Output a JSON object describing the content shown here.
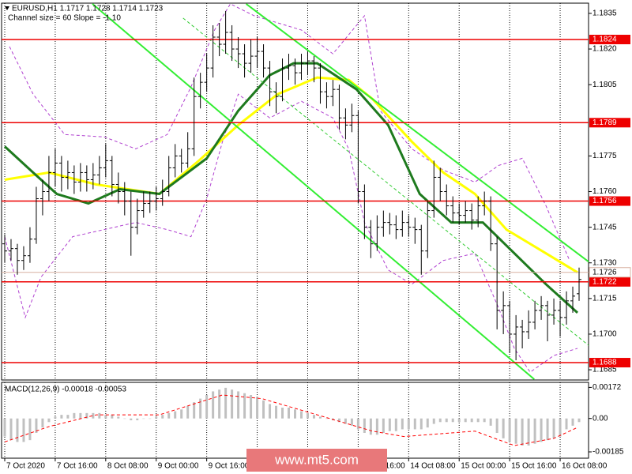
{
  "header": {
    "symbol_line": "EURUSD,H1  1.1717 1.1728 1.1714 1.1723",
    "channel_info": "Channel size = 60 Slope = -1.10"
  },
  "watermark": "www.mt5.com",
  "chart_data": [
    {
      "type": "ohlc",
      "bar_color": "#000000",
      "grid": true,
      "xlim": [
        -0.5,
        92.5
      ],
      "ylim": [
        1.16807,
        1.18393
      ],
      "xticks": [
        {
          "value": 0,
          "label": "7 Oct 2020"
        },
        {
          "value": 8,
          "label": "7 Oct 16:00"
        },
        {
          "value": 16,
          "label": "8 Oct 08:00"
        },
        {
          "value": 24,
          "label": "9 Oct 00:00"
        },
        {
          "value": 32,
          "label": "9 Oct 16:00"
        },
        {
          "value": 40,
          "label": "12 Oct 08:00"
        },
        {
          "value": 48,
          "label": "13 Oct 00:00"
        },
        {
          "value": 56,
          "label": "13 Oct 16:00"
        },
        {
          "value": 64,
          "label": "14 Oct 08:00"
        },
        {
          "value": 72,
          "label": "15 Oct 00:00"
        },
        {
          "value": 80,
          "label": "15 Oct 16:00"
        },
        {
          "value": 88,
          "label": "16 Oct 08:00"
        }
      ],
      "yticks": [
        1.1835,
        {
          "value": 1.182,
          "label": "1.1820"
        },
        1.1805,
        1.1775,
        {
          "value": 1.176,
          "label": "1.1760"
        },
        1.1745,
        {
          "value": 1.173,
          "label": "1.1730"
        },
        1.1715,
        {
          "value": 1.17,
          "label": "1.1700"
        },
        1.1685
      ],
      "levels": [
        1.1824,
        1.1789,
        1.1756,
        1.1722,
        1.1688
      ],
      "level_color": "#ee0000",
      "current_price": 1.1726,
      "current_price_color": "#d8b0a0",
      "ohlc": [
        [
          1.1738,
          1.1742,
          1.173,
          1.1735
        ],
        [
          1.1735,
          1.174,
          1.1731,
          1.1736
        ],
        [
          1.1736,
          1.1738,
          1.1725,
          1.1731
        ],
        [
          1.1731,
          1.1737,
          1.1727,
          1.1733
        ],
        [
          1.1733,
          1.1745,
          1.173,
          1.174
        ],
        [
          1.174,
          1.1762,
          1.1738,
          1.1757
        ],
        [
          1.1757,
          1.1765,
          1.175,
          1.176
        ],
        [
          1.176,
          1.1775,
          1.1756,
          1.1768
        ],
        [
          1.1768,
          1.1778,
          1.1762,
          1.1772
        ],
        [
          1.1772,
          1.1775,
          1.176,
          1.1766
        ],
        [
          1.1766,
          1.1773,
          1.1761,
          1.1768
        ],
        [
          1.1768,
          1.1771,
          1.1759,
          1.1764
        ],
        [
          1.1764,
          1.1772,
          1.176,
          1.1768
        ],
        [
          1.1768,
          1.1771,
          1.176,
          1.1765
        ],
        [
          1.1765,
          1.1772,
          1.1761,
          1.1767
        ],
        [
          1.1767,
          1.1775,
          1.1763,
          1.177
        ],
        [
          1.177,
          1.178,
          1.1766,
          1.1773
        ],
        [
          1.1773,
          1.1775,
          1.1758,
          1.1763
        ],
        [
          1.1763,
          1.1768,
          1.1755,
          1.176
        ],
        [
          1.176,
          1.1764,
          1.175,
          1.1756
        ],
        [
          1.1756,
          1.176,
          1.1733,
          1.1745
        ],
        [
          1.1745,
          1.1757,
          1.1742,
          1.1752
        ],
        [
          1.1752,
          1.176,
          1.1749,
          1.1755
        ],
        [
          1.1755,
          1.176,
          1.1751,
          1.1756
        ],
        [
          1.1756,
          1.1762,
          1.1752,
          1.1757
        ],
        [
          1.1757,
          1.1765,
          1.1754,
          1.176
        ],
        [
          1.176,
          1.1775,
          1.1758,
          1.177
        ],
        [
          1.177,
          1.178,
          1.1766,
          1.1775
        ],
        [
          1.1775,
          1.1778,
          1.1768,
          1.1772
        ],
        [
          1.1772,
          1.1785,
          1.177,
          1.1778
        ],
        [
          1.1778,
          1.1808,
          1.1775,
          1.18
        ],
        [
          1.18,
          1.181,
          1.1795,
          1.1806
        ],
        [
          1.1806,
          1.1818,
          1.1802,
          1.1812
        ],
        [
          1.1812,
          1.183,
          1.1808,
          1.1825
        ],
        [
          1.1825,
          1.1831,
          1.1817,
          1.1822
        ],
        [
          1.1822,
          1.1836,
          1.1818,
          1.1827
        ],
        [
          1.1827,
          1.183,
          1.1815,
          1.182
        ],
        [
          1.182,
          1.1825,
          1.1812,
          1.1818
        ],
        [
          1.1818,
          1.1822,
          1.1808,
          1.1814
        ],
        [
          1.1814,
          1.1824,
          1.181,
          1.1817
        ],
        [
          1.1817,
          1.1825,
          1.1812,
          1.1819
        ],
        [
          1.1819,
          1.1822,
          1.1808,
          1.1812
        ],
        [
          1.1812,
          1.1815,
          1.1796,
          1.1802
        ],
        [
          1.1802,
          1.1806,
          1.1793,
          1.18
        ],
        [
          1.18,
          1.1816,
          1.1798,
          1.1812
        ],
        [
          1.1812,
          1.1818,
          1.1807,
          1.1813
        ],
        [
          1.1813,
          1.1816,
          1.1805,
          1.181
        ],
        [
          1.181,
          1.1818,
          1.1807,
          1.1814
        ],
        [
          1.1814,
          1.1819,
          1.1809,
          1.1815
        ],
        [
          1.1815,
          1.1817,
          1.1806,
          1.1812
        ],
        [
          1.1812,
          1.1814,
          1.1797,
          1.1802
        ],
        [
          1.1802,
          1.1806,
          1.1795,
          1.18
        ],
        [
          1.18,
          1.1807,
          1.1796,
          1.1803
        ],
        [
          1.1803,
          1.1805,
          1.1786,
          1.1791
        ],
        [
          1.1791,
          1.1795,
          1.1782,
          1.1788
        ],
        [
          1.1788,
          1.1797,
          1.1785,
          1.1792
        ],
        [
          1.1792,
          1.1794,
          1.1755,
          1.176
        ],
        [
          1.176,
          1.1763,
          1.174,
          1.1745
        ],
        [
          1.1745,
          1.1748,
          1.1732,
          1.1738
        ],
        [
          1.1738,
          1.175,
          1.1735,
          1.1745
        ],
        [
          1.1745,
          1.1752,
          1.1741,
          1.1747
        ],
        [
          1.1747,
          1.1751,
          1.1742,
          1.1746
        ],
        [
          1.1746,
          1.175,
          1.174,
          1.1744
        ],
        [
          1.1744,
          1.1752,
          1.1741,
          1.1747
        ],
        [
          1.1747,
          1.175,
          1.1741,
          1.1745
        ],
        [
          1.1745,
          1.1749,
          1.1738,
          1.1744
        ],
        [
          1.1744,
          1.1746,
          1.1725,
          1.1735
        ],
        [
          1.1735,
          1.1756,
          1.1732,
          1.1752
        ],
        [
          1.1752,
          1.1773,
          1.1749,
          1.1766
        ],
        [
          1.1766,
          1.177,
          1.1756,
          1.176
        ],
        [
          1.176,
          1.1763,
          1.175,
          1.1754
        ],
        [
          1.1754,
          1.1758,
          1.1747,
          1.1751
        ],
        [
          1.1751,
          1.1755,
          1.1746,
          1.175
        ],
        [
          1.175,
          1.1756,
          1.1747,
          1.1752
        ],
        [
          1.1752,
          1.1755,
          1.1744,
          1.1748
        ],
        [
          1.1748,
          1.1758,
          1.1745,
          1.1754
        ],
        [
          1.1754,
          1.176,
          1.175,
          1.1756
        ],
        [
          1.1756,
          1.1758,
          1.1735,
          1.1738
        ],
        [
          1.1738,
          1.1741,
          1.1702,
          1.171
        ],
        [
          1.171,
          1.1718,
          1.17,
          1.1712
        ],
        [
          1.1712,
          1.1714,
          1.1692,
          1.17
        ],
        [
          1.17,
          1.1708,
          1.1689,
          1.1703
        ],
        [
          1.1703,
          1.1706,
          1.1694,
          1.1701
        ],
        [
          1.1701,
          1.171,
          1.1698,
          1.1705
        ],
        [
          1.1705,
          1.1714,
          1.1702,
          1.171
        ],
        [
          1.171,
          1.1716,
          1.1706,
          1.1712
        ],
        [
          1.1712,
          1.1714,
          1.1697,
          1.1708
        ],
        [
          1.1708,
          1.1715,
          1.1704,
          1.171
        ],
        [
          1.171,
          1.1714,
          1.1699,
          1.1707
        ],
        [
          1.1707,
          1.1718,
          1.1704,
          1.1714
        ],
        [
          1.1714,
          1.172,
          1.1709,
          1.1716
        ],
        [
          1.1717,
          1.1728,
          1.1714,
          1.1723
        ]
      ],
      "overlays": [
        {
          "color": "#b040d0",
          "width": 1,
          "dash": true,
          "x": [
            0.75,
            4.5,
            9.5,
            15.75,
            20.75,
            25.75,
            29.5,
            33.25,
            35.75,
            39.5,
            47,
            52,
            57,
            59.5,
            64.5,
            69.5,
            74.5,
            78.25,
            82,
            85.75,
            89.5
          ],
          "values": [
            1.1821,
            1.1801,
            1.1784,
            1.1783,
            1.1778,
            1.1784,
            1.1804,
            1.1828,
            1.1839,
            1.1834,
            1.1828,
            1.1818,
            1.1834,
            1.1794,
            1.1778,
            1.1769,
            1.1764,
            1.1771,
            1.1774,
            1.1754,
            1.1731
          ]
        },
        {
          "color": "#b040d0",
          "width": 1,
          "dash": true,
          "x": [
            0,
            3.25,
            5.75,
            10.75,
            15.75,
            20.75,
            25.75,
            29.5,
            32,
            34.5,
            37,
            42,
            47,
            52,
            54.5,
            57,
            60.75,
            64.5,
            69.5,
            74.5,
            78.25,
            80.75,
            83.25,
            87,
            90.75
          ],
          "values": [
            1.1741,
            1.1707,
            1.1724,
            1.1741,
            1.1744,
            1.1747,
            1.1744,
            1.1741,
            1.1757,
            1.1781,
            1.1801,
            1.1791,
            1.1798,
            1.1791,
            1.1778,
            1.1747,
            1.1727,
            1.1721,
            1.1731,
            1.1734,
            1.1711,
            1.1694,
            1.1684,
            1.1691,
            1.1694
          ]
        },
        {
          "color": "#ffff00",
          "width": 3,
          "dash": false,
          "x": [
            0,
            7,
            14.5,
            24.5,
            30.75,
            37,
            43.25,
            49.5,
            54.5,
            58.25,
            64.5,
            69.5,
            74.5,
            79.5,
            85.75,
            90.75
          ],
          "values": [
            1.1765,
            1.1768,
            1.1763,
            1.1759,
            1.1773,
            1.1788,
            1.1801,
            1.1808,
            1.1807,
            1.1799,
            1.1781,
            1.1768,
            1.1759,
            1.1744,
            1.1734,
            1.1726
          ]
        },
        {
          "color": "#1e7a1e",
          "width": 3,
          "dash": false,
          "x": [
            0,
            4.5,
            8.25,
            13.25,
            18.25,
            24.5,
            32,
            37,
            42,
            45.75,
            49.5,
            55.75,
            60.75,
            65.75,
            70.75,
            75.75,
            80.75,
            85.75,
            90.75
          ],
          "values": [
            1.1779,
            1.1768,
            1.1759,
            1.1755,
            1.1761,
            1.1759,
            1.1774,
            1.1794,
            1.1809,
            1.1814,
            1.1814,
            1.1803,
            1.1788,
            1.1759,
            1.1747,
            1.1747,
            1.1734,
            1.1721,
            1.1709
          ]
        }
      ],
      "channels": [
        {
          "color": "#33ee33",
          "width": 2,
          "dash": false,
          "x": [
            38.25,
            98.25
          ],
          "values": [
            1.1839,
            1.1719
          ]
        },
        {
          "color": "#33cc33",
          "width": 1,
          "dash": true,
          "x": [
            28.25,
            94.5
          ],
          "values": [
            1.1833,
            1.1691
          ]
        },
        {
          "color": "#33ee33",
          "width": 2,
          "dash": false,
          "x": [
            13.9,
            83.9
          ],
          "values": [
            1.1839,
            1.1681
          ]
        }
      ]
    },
    {
      "type": "macd",
      "label": "MACD(12,26,9) -0.00018 -0.00053",
      "xlim": [
        -0.5,
        92.5
      ],
      "ylim": [
        -0.0022,
        0.002
      ],
      "yticks": [
        0.00172,
        {
          "value": 0,
          "label": "0.00"
        },
        -0.00185
      ],
      "histogram_color": "#c0c0c0",
      "histogram": [
        -0.001,
        -0.0012,
        -0.0013,
        -0.0013,
        -0.0012,
        -0.0008,
        -0.0005,
        -0.0002,
        0.0001,
        0.0002,
        0.0002,
        0.0003,
        0.0003,
        0.0003,
        0.0003,
        0.0003,
        0.0002,
        0.0002,
        0.0001,
        0,
        -0.0001,
        -0.0001,
        0,
        0,
        0.0001,
        0.0002,
        0.0003,
        0.0004,
        0.0005,
        0.0007,
        0.0009,
        0.0011,
        0.0013,
        0.0015,
        0.0016,
        0.0017,
        0.0016,
        0.0015,
        0.0014,
        0.0013,
        0.0012,
        0.001,
        0.0008,
        0.0007,
        0.0006,
        0.0006,
        0.0005,
        0.0004,
        0.0003,
        0.0002,
        0.0001,
        0,
        -0.0001,
        -0.0002,
        -0.0003,
        -0.0004,
        -0.0006,
        -0.0008,
        -0.0009,
        -0.0009,
        -0.0008,
        -0.0007,
        -0.0007,
        -0.0006,
        -0.0006,
        -0.0006,
        -0.0006,
        -0.0005,
        -0.0003,
        -0.0002,
        -0.0002,
        -0.0002,
        -0.0002,
        -0.0002,
        -0.0002,
        -0.0002,
        -0.0002,
        -0.0004,
        -0.0008,
        -0.0011,
        -0.0013,
        -0.0014,
        -0.0015,
        -0.0015,
        -0.0014,
        -0.0013,
        -0.0012,
        -0.0011,
        -0.001,
        -0.0006,
        -0.0004,
        -0.0002
      ],
      "signal": {
        "color": "#ff0000",
        "x": [
          0,
          7,
          14.5,
          24.5,
          34.5,
          40.75,
          49.5,
          58.25,
          63.25,
          74.5,
          80.75,
          87,
          90.75
        ],
        "values": [
          -0.0013,
          -0.00045,
          0.0002,
          0.0002,
          0.0013,
          0.0011,
          0.0002,
          -0.0007,
          -0.001,
          -0.0007,
          -0.0015,
          -0.0011,
          -0.0005
        ]
      }
    }
  ]
}
